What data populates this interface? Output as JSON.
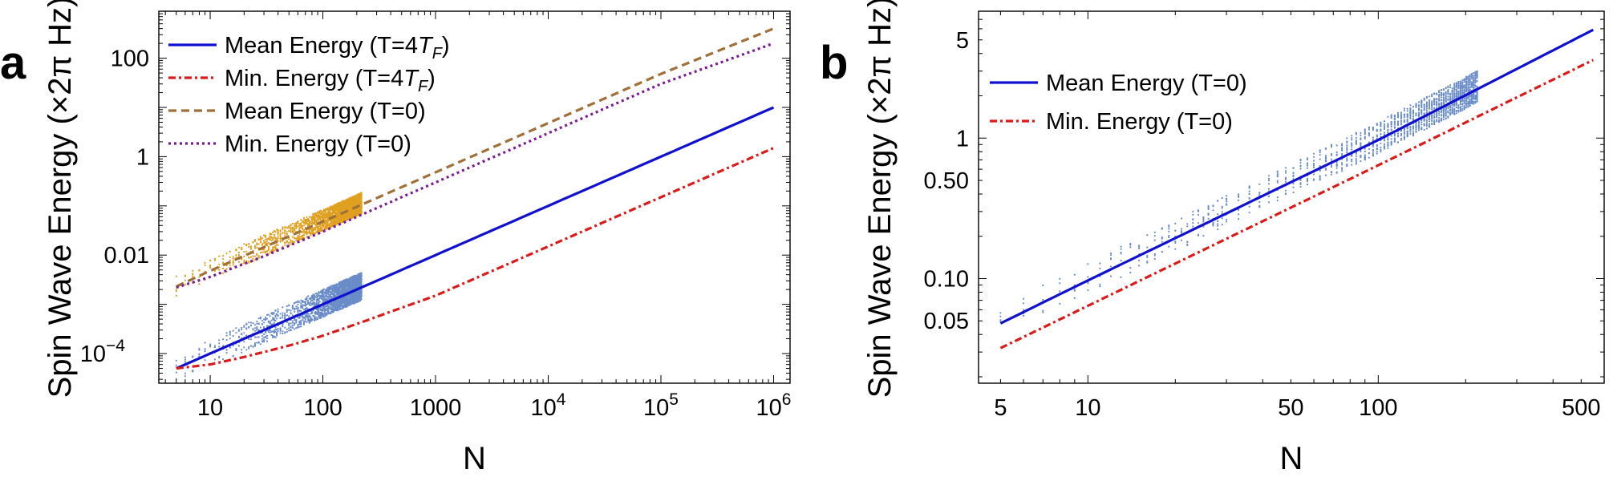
{
  "chart_data": [
    {
      "panel": "a",
      "type": "line",
      "xlabel": "N",
      "ylabel": "Spin Wave Energy (×2π Hz)",
      "xscale": "log",
      "yscale": "log",
      "xlim": [
        3.5,
        1400000
      ],
      "ylim": [
        2.5e-05,
        900
      ],
      "xticks": [
        {
          "v": 10,
          "label": "10"
        },
        {
          "v": 100,
          "label": "100"
        },
        {
          "v": 1000,
          "label": "1000"
        },
        {
          "v": 10000,
          "label": "10",
          "sup": "4"
        },
        {
          "v": 100000,
          "label": "10",
          "sup": "5"
        },
        {
          "v": 1000000,
          "label": "10",
          "sup": "6"
        }
      ],
      "yticks": [
        {
          "v": 0.0001,
          "label": "10",
          "sup": "−4"
        },
        {
          "v": 0.01,
          "label": "0.01"
        },
        {
          "v": 1,
          "label": "1"
        },
        {
          "v": 100,
          "label": "100"
        }
      ],
      "legend": "top-left",
      "series": [
        {
          "name": "Mean Energy (T=4",
          "name_italic": "T",
          "name_sub": "F",
          "name_end": ")",
          "color": "#1010d0",
          "dash": "",
          "width": 3.2,
          "x": [
            5,
            10,
            30,
            100,
            300,
            1000,
            10000,
            100000,
            1000000
          ],
          "y": [
            5e-05,
            0.0001,
            0.0003,
            0.001,
            0.003,
            0.01,
            0.1,
            1,
            10
          ]
        },
        {
          "name": "Min. Energy (T=4",
          "name_italic": "T",
          "name_sub": "F",
          "name_end": ")",
          "color": "#dd1a1a",
          "dash": "9,4,3,4",
          "width": 3.2,
          "x": [
            5,
            10,
            20,
            50,
            100,
            200,
            500,
            1000,
            10000,
            100000,
            1000000
          ],
          "y": [
            5e-05,
            6e-05,
            8.5e-05,
            0.000145,
            0.00023,
            0.0004,
            0.00085,
            0.0015,
            0.015,
            0.15,
            1.5
          ]
        },
        {
          "name": "Mean Energy (T=0)",
          "color": "#a07038",
          "dash": "10,6",
          "width": 3.2,
          "x": [
            5,
            10,
            30,
            100,
            1000,
            10000,
            100000,
            1000000
          ],
          "y": [
            0.0023,
            0.0048,
            0.0145,
            0.048,
            0.48,
            4.8,
            48,
            400
          ]
        },
        {
          "name": "Min. Energy (T=0)",
          "color": "#7a1e8e",
          "dash": "3,4",
          "width": 3.2,
          "x": [
            5,
            10,
            30,
            100,
            1000,
            10000,
            100000,
            1000000
          ],
          "y": [
            0.0022,
            0.0036,
            0.0095,
            0.03,
            0.3,
            3,
            30,
            200
          ]
        }
      ],
      "scatter": [
        {
          "color": "#e0a020",
          "n_min": 5,
          "n_max": 220,
          "lo_factor": 0.65,
          "hi_factor": 1.75,
          "base_series": 2
        },
        {
          "color": "#6a8cc8",
          "n_min": 5,
          "n_max": 220,
          "lo_factor": 0.55,
          "hi_factor": 2.0,
          "base_series": 0
        }
      ]
    },
    {
      "panel": "b",
      "type": "line",
      "xlabel": "N",
      "ylabel": "Spin Wave Energy (×2π Hz)",
      "xscale": "log",
      "yscale": "log",
      "xlim": [
        4.2,
        600
      ],
      "ylim": [
        0.018,
        8
      ],
      "xticks": [
        {
          "v": 5,
          "label": "5"
        },
        {
          "v": 10,
          "label": "10"
        },
        {
          "v": 50,
          "label": "50"
        },
        {
          "v": 100,
          "label": "100"
        },
        {
          "v": 500,
          "label": "500"
        }
      ],
      "yticks": [
        {
          "v": 0.05,
          "label": "0.05"
        },
        {
          "v": 0.1,
          "label": "0.10"
        },
        {
          "v": 0.5,
          "label": "0.50"
        },
        {
          "v": 1,
          "label": "1"
        },
        {
          "v": 5,
          "label": "5"
        }
      ],
      "legend": "top-left",
      "series": [
        {
          "name": "Mean Energy (T=0)",
          "color": "#1010d0",
          "dash": "",
          "width": 3.2,
          "x": [
            5,
            10,
            50,
            100,
            550
          ],
          "y": [
            0.048,
            0.097,
            0.485,
            0.97,
            5.9
          ]
        },
        {
          "name": "Min. Energy (T=0)",
          "color": "#dd1a1a",
          "dash": "9,4,3,4",
          "width": 3.2,
          "x": [
            5,
            10,
            50,
            100,
            550
          ],
          "y": [
            0.032,
            0.064,
            0.32,
            0.64,
            3.6
          ]
        }
      ],
      "scatter": [
        {
          "color": "#6a8cc8",
          "n_min": 5,
          "n_max": 220,
          "lo_factor": 0.8,
          "hi_factor": 1.35,
          "base_series": 0
        }
      ]
    }
  ]
}
